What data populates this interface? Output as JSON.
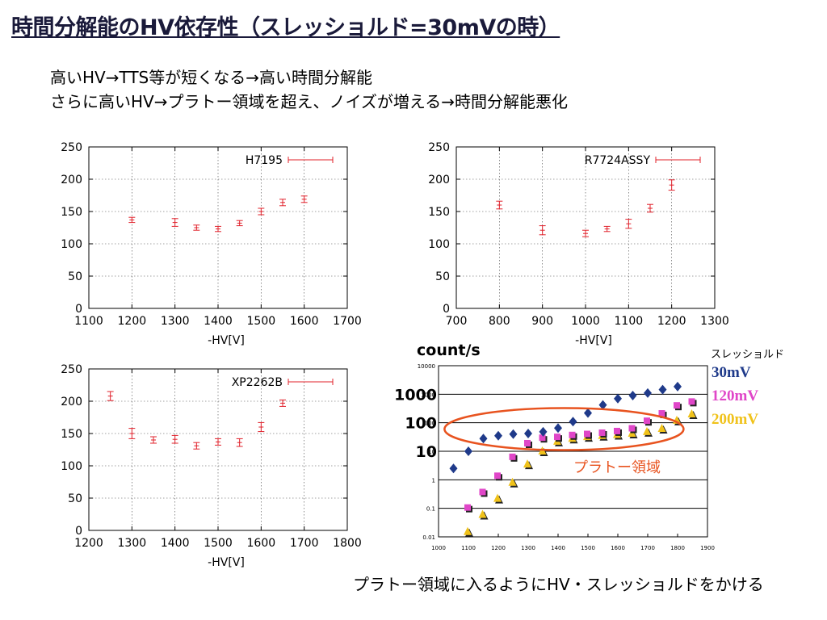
{
  "slide": {
    "title": "時間分解能のHV依存性（スレッショルド=30mVの時）",
    "line1": "高いHV→TTS等が短くなる→高い時間分解能",
    "line2": "さらに高いHV→プラトー領域を超え、ノイズが増える→時間分解能悪化",
    "footer": "プラトー領域に入るようにHV・スレッショルドをかける"
  },
  "chart_data": [
    {
      "type": "scatter",
      "title": "",
      "legend": "H7195",
      "xlabel": "-HV[V]",
      "ylabel": "",
      "xlim": [
        1100,
        1700
      ],
      "ylim": [
        0,
        250
      ],
      "xticks": [
        1100,
        1200,
        1300,
        1400,
        1500,
        1600,
        1700
      ],
      "yticks": [
        0,
        50,
        100,
        150,
        200,
        250
      ],
      "grid": true,
      "legend_position": "top-right",
      "color": "#e0202a",
      "points": [
        {
          "x": 1200,
          "y": 137,
          "err": 4
        },
        {
          "x": 1300,
          "y": 133,
          "err": 6
        },
        {
          "x": 1350,
          "y": 125,
          "err": 4
        },
        {
          "x": 1400,
          "y": 123,
          "err": 4
        },
        {
          "x": 1450,
          "y": 132,
          "err": 4
        },
        {
          "x": 1500,
          "y": 150,
          "err": 5
        },
        {
          "x": 1550,
          "y": 164,
          "err": 5
        },
        {
          "x": 1600,
          "y": 169,
          "err": 5
        }
      ]
    },
    {
      "type": "scatter",
      "title": "",
      "legend": "R7724ASSY",
      "xlabel": "-HV[V]",
      "ylabel": "",
      "xlim": [
        700,
        1300
      ],
      "ylim": [
        0,
        250
      ],
      "xticks": [
        700,
        800,
        900,
        1000,
        1100,
        1200,
        1300
      ],
      "yticks": [
        0,
        50,
        100,
        150,
        200,
        250
      ],
      "grid": true,
      "legend_position": "top-right",
      "color": "#e0202a",
      "points": [
        {
          "x": 800,
          "y": 160,
          "err": 6
        },
        {
          "x": 900,
          "y": 121,
          "err": 7
        },
        {
          "x": 1000,
          "y": 116,
          "err": 5
        },
        {
          "x": 1050,
          "y": 123,
          "err": 4
        },
        {
          "x": 1100,
          "y": 131,
          "err": 7
        },
        {
          "x": 1150,
          "y": 155,
          "err": 6
        },
        {
          "x": 1200,
          "y": 191,
          "err": 8
        }
      ]
    },
    {
      "type": "scatter",
      "title": "",
      "legend": "XP2262B",
      "xlabel": "-HV[V]",
      "ylabel": "",
      "xlim": [
        1200,
        1800
      ],
      "ylim": [
        0,
        250
      ],
      "xticks": [
        1200,
        1300,
        1400,
        1500,
        1600,
        1700,
        1800
      ],
      "yticks": [
        0,
        50,
        100,
        150,
        200,
        250
      ],
      "grid": true,
      "legend_position": "top-right",
      "color": "#e0202a",
      "points": [
        {
          "x": 1250,
          "y": 208,
          "err": 7
        },
        {
          "x": 1300,
          "y": 150,
          "err": 8
        },
        {
          "x": 1350,
          "y": 140,
          "err": 5
        },
        {
          "x": 1400,
          "y": 141,
          "err": 6
        },
        {
          "x": 1450,
          "y": 131,
          "err": 5
        },
        {
          "x": 1500,
          "y": 137,
          "err": 5
        },
        {
          "x": 1550,
          "y": 136,
          "err": 6
        },
        {
          "x": 1600,
          "y": 160,
          "err": 7
        },
        {
          "x": 1650,
          "y": 197,
          "err": 5
        }
      ]
    },
    {
      "type": "scatter",
      "title": "",
      "ylabel": "count/s",
      "xlabel": "",
      "log_y": true,
      "xlim": [
        1000,
        1900
      ],
      "ylim": [
        0.01,
        10000
      ],
      "xticks": [
        1000,
        1100,
        1200,
        1300,
        1400,
        1500,
        1600,
        1700,
        1800,
        1900
      ],
      "yticks_small": [
        "10000",
        "1000",
        "100",
        "10",
        "1",
        "0.1",
        "0.01"
      ],
      "yticks_big": [
        "1000",
        "100",
        "10"
      ],
      "grid": true,
      "legend_title": "スレッショルド",
      "annotation": "プラトー領域",
      "ellipse_color": "#e8531f",
      "series": [
        {
          "name": "30mV",
          "color": "#1f3a8a",
          "marker": "diamond",
          "points": [
            [
              1050,
              2.5
            ],
            [
              1100,
              10
            ],
            [
              1150,
              28
            ],
            [
              1200,
              35
            ],
            [
              1250,
              40
            ],
            [
              1300,
              42
            ],
            [
              1350,
              48
            ],
            [
              1400,
              65
            ],
            [
              1450,
              110
            ],
            [
              1500,
              220
            ],
            [
              1550,
              420
            ],
            [
              1600,
              700
            ],
            [
              1650,
              900
            ],
            [
              1700,
              1100
            ],
            [
              1750,
              1450
            ],
            [
              1800,
              1850
            ]
          ]
        },
        {
          "name": "120mV",
          "color": "#e046c8",
          "marker": "square",
          "points": [
            [
              1100,
              0.1
            ],
            [
              1150,
              0.35
            ],
            [
              1200,
              1.3
            ],
            [
              1250,
              6
            ],
            [
              1300,
              18
            ],
            [
              1350,
              28
            ],
            [
              1400,
              30
            ],
            [
              1450,
              35
            ],
            [
              1500,
              38
            ],
            [
              1550,
              42
            ],
            [
              1600,
              48
            ],
            [
              1650,
              60
            ],
            [
              1700,
              110
            ],
            [
              1750,
              200
            ],
            [
              1800,
              380
            ],
            [
              1850,
              520
            ]
          ]
        },
        {
          "name": "200mV",
          "color": "#f0c21a",
          "marker": "triangle",
          "points": [
            [
              1100,
              0.015
            ],
            [
              1150,
              0.06
            ],
            [
              1200,
              0.22
            ],
            [
              1250,
              0.8
            ],
            [
              1300,
              3.5
            ],
            [
              1350,
              10
            ],
            [
              1400,
              22
            ],
            [
              1450,
              28
            ],
            [
              1500,
              32
            ],
            [
              1550,
              35
            ],
            [
              1600,
              38
            ],
            [
              1650,
              42
            ],
            [
              1700,
              48
            ],
            [
              1750,
              62
            ],
            [
              1800,
              120
            ],
            [
              1850,
              200
            ]
          ]
        }
      ]
    }
  ]
}
